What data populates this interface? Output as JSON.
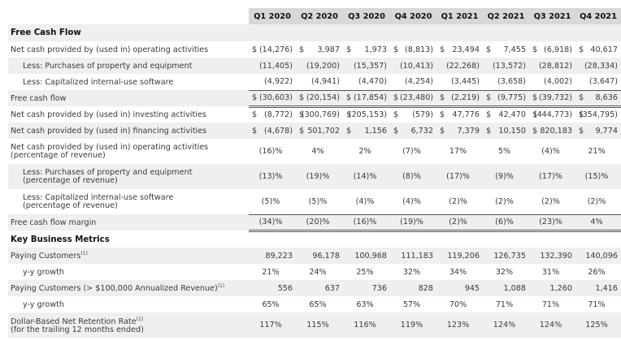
{
  "header": {
    "columns": [
      "Q1 2020",
      "Q2 2020",
      "Q3 2020",
      "Q4 2020",
      "Q1 2021",
      "Q2 2021",
      "Q3 2021",
      "Q4 2021"
    ]
  },
  "sections": {
    "fcf": "Free Cash Flow",
    "kbm": "Key Business Metrics"
  },
  "rows": {
    "op": {
      "label": "Net cash provided by (used in) operating activities",
      "values": [
        "(14,276)",
        "3,987",
        "1,973",
        "(8,813)",
        "23,494",
        "7,455",
        "(6,918)",
        "40,617"
      ],
      "currency": "$"
    },
    "ppe": {
      "label": "Less: Purchases of property and equipment",
      "values": [
        "(11,405)",
        "(19,200)",
        "(15,357)",
        "(10,413)",
        "(22,268)",
        "(13,572)",
        "(28,812)",
        "(28,334)"
      ]
    },
    "cap": {
      "label": "Less: Capitalized internal-use software",
      "values": [
        "(4,922)",
        "(4,941)",
        "(4,470)",
        "(4,254)",
        "(3,445)",
        "(3,658)",
        "(4,002)",
        "(3,647)"
      ]
    },
    "fcf": {
      "label": "Free cash flow",
      "values": [
        "(30,603)",
        "(20,154)",
        "(17,854)",
        "(23,480)",
        "(2,219)",
        "(9,775)",
        "(39,732)",
        "8,636"
      ],
      "currency": "$"
    },
    "inv": {
      "label": "Net cash provided by (used in) investing activities",
      "values": [
        "(8,772)",
        "(300,769)",
        "(205,153)",
        "(579)",
        "47,776",
        "42,470",
        "(444,773)",
        "(354,795)"
      ],
      "currency": "$"
    },
    "fin": {
      "label": "Net cash provided by (used in) financing activities",
      "values": [
        "(4,678)",
        "501,702",
        "1,156",
        "6,732",
        "7,379",
        "10,150",
        "820,183",
        "9,774"
      ],
      "currency": "$"
    },
    "op_pct": {
      "label1": "Net cash provided by (used in) operating activities",
      "label2": "(percentage of revenue)",
      "values": [
        "(16)%",
        "4%",
        "2%",
        "(7)%",
        "17%",
        "5%",
        "(4)%",
        "21%"
      ]
    },
    "ppe_pct": {
      "label1": "Less: Purchases of property and equipment",
      "label2": "(percentage of revenue)",
      "values": [
        "(13)%",
        "(19)%",
        "(14)%",
        "(8)%",
        "(17)%",
        "(9)%",
        "(17)%",
        "(15)%"
      ]
    },
    "cap_pct": {
      "label1": "Less: Capitalized internal-use software",
      "label2": "(percentage of revenue)",
      "values": [
        "(5)%",
        "(5)%",
        "(4)%",
        "(4)%",
        "(2)%",
        "(2)%",
        "(2)%",
        "(2)%"
      ]
    },
    "margin": {
      "label": "Free cash flow margin",
      "values": [
        "(34)%",
        "(20)%",
        "(16)%",
        "(19)%",
        "(2)%",
        "(6)%",
        "(23)%",
        "4%"
      ]
    },
    "paying": {
      "label": "Paying Customers",
      "note": "(1)",
      "values": [
        "89,223",
        "96,178",
        "100,968",
        "111,183",
        "119,206",
        "126,735",
        "132,390",
        "140,096"
      ]
    },
    "paying_yy": {
      "label": "y-y growth",
      "values": [
        "21%",
        "24%",
        "25%",
        "32%",
        "34%",
        "32%",
        "31%",
        "26%"
      ]
    },
    "large": {
      "label": "Paying Customers (> $100,000 Annualized Revenue)",
      "note": "(1)",
      "values": [
        "556",
        "637",
        "736",
        "828",
        "945",
        "1,088",
        "1,260",
        "1,416"
      ]
    },
    "large_yy": {
      "label": "y-y growth",
      "values": [
        "65%",
        "65%",
        "63%",
        "57%",
        "70%",
        "71%",
        "71%",
        "71%"
      ]
    },
    "nrr": {
      "label1": "Dollar-Based Net Retention Rate",
      "note": "(1)",
      "label2": "(for the trailing 12 months ended)",
      "values": [
        "117%",
        "115%",
        "116%",
        "119%",
        "123%",
        "124%",
        "124%",
        "125%"
      ]
    }
  }
}
